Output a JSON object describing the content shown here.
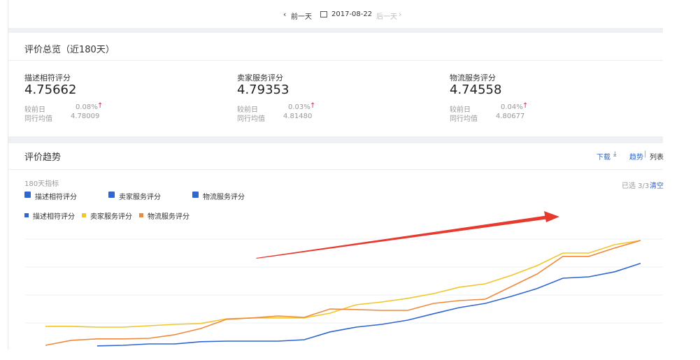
{
  "date_nav": {
    "prev": "前一天",
    "date": "2017-08-22",
    "next": "后一天"
  },
  "overview": {
    "title": "评价总览（近180天）",
    "cards": [
      {
        "label": "描述相符评分",
        "score": "4.75662",
        "change_label": "较前日",
        "change": "0.08%",
        "avg_label": "同行均值",
        "avg": "4.78009"
      },
      {
        "label": "卖家服务评分",
        "score": "4.79353",
        "change_label": "较前日",
        "change": "0.03%",
        "avg_label": "同行均值",
        "avg": "4.81480"
      },
      {
        "label": "物流服务评分",
        "score": "4.74558",
        "change_label": "较前日",
        "change": "0.04%",
        "avg_label": "同行均值",
        "avg": "4.80677"
      }
    ]
  },
  "trend": {
    "title": "评价趋势",
    "download": "下载",
    "view_chart": "趋势",
    "view_table": "列表",
    "metrics_label": "180天指标",
    "selected": "已选 3/3",
    "clear": "清空",
    "checkboxes": [
      "描述相符评分",
      "卖家服务评分",
      "物流服务评分"
    ],
    "chart_data": {
      "type": "line",
      "categories": [
        null,
        null,
        null,
        null,
        null,
        null,
        null,
        null,
        null,
        null,
        null,
        null,
        null,
        null,
        null,
        null,
        null,
        null,
        null,
        null,
        null,
        null,
        null,
        null
      ],
      "ylim": [
        0,
        4
      ],
      "series": [
        {
          "name": "描述相符评分",
          "color": "#2f66d0",
          "values": [
            null,
            null,
            0.18,
            0.2,
            0.25,
            0.25,
            0.33,
            0.35,
            0.35,
            0.35,
            0.4,
            0.68,
            0.85,
            0.95,
            1.1,
            1.33,
            1.55,
            1.7,
            1.95,
            2.23,
            2.6,
            2.65,
            2.83,
            3.13
          ]
        },
        {
          "name": "卖家服务评分",
          "color": "#f0c62a",
          "values": [
            0.88,
            0.88,
            0.85,
            0.85,
            0.9,
            0.95,
            0.98,
            1.15,
            1.18,
            1.18,
            1.18,
            1.35,
            1.65,
            1.75,
            1.88,
            2.05,
            2.28,
            2.4,
            2.7,
            3.05,
            3.5,
            3.5,
            3.8,
            3.95
          ]
        },
        {
          "name": "物流服务评分",
          "color": "#ef8a3c",
          "values": [
            0.2,
            0.38,
            0.43,
            0.43,
            0.45,
            0.58,
            0.8,
            1.13,
            1.18,
            1.25,
            1.2,
            1.5,
            1.48,
            1.45,
            1.45,
            1.7,
            1.8,
            1.85,
            2.3,
            2.75,
            3.38,
            3.38,
            3.68,
            3.95
          ]
        }
      ]
    }
  }
}
